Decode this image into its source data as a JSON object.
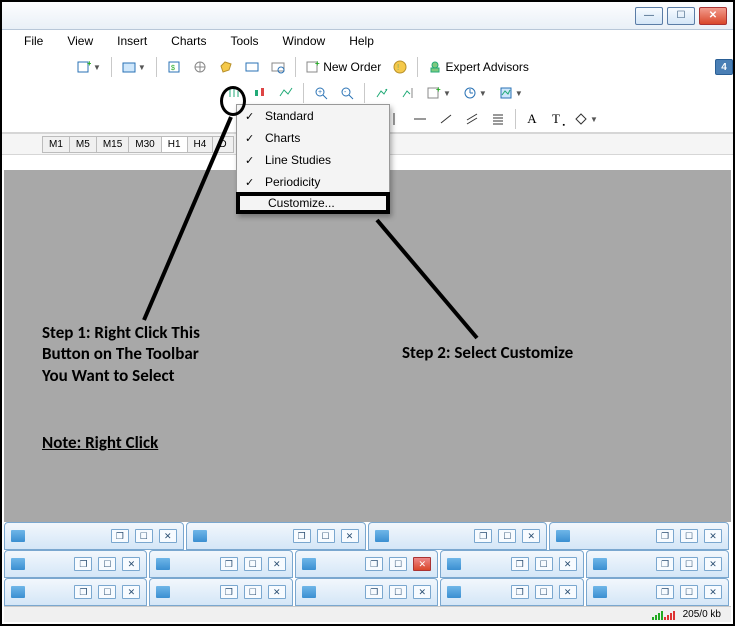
{
  "window": {
    "unicode": {
      "min": "—",
      "max": "☐",
      "close": "✕"
    }
  },
  "menu": {
    "items": [
      "File",
      "View",
      "Insert",
      "Charts",
      "Tools",
      "Window",
      "Help"
    ]
  },
  "toolbar": {
    "new_order": "New Order",
    "expert_advisors": "Expert Advisors",
    "row3_text": "A",
    "row3_text2": "T",
    "tail_badge": "4"
  },
  "timeframes": {
    "items": [
      "M1",
      "M5",
      "M15",
      "M30",
      "H1",
      "H4",
      "D"
    ],
    "active": "H1"
  },
  "context_menu": {
    "items": [
      {
        "label": "Standard",
        "checked": true
      },
      {
        "label": "Charts",
        "checked": true
      },
      {
        "label": "Line Studies",
        "checked": true
      },
      {
        "label": "Periodicity",
        "checked": true
      }
    ],
    "customize": "Customize..."
  },
  "annotations": {
    "step1": "Step 1: Right Click This\nButton on The Toolbar\nYou Want to Select",
    "step2": "Step 2: Select Customize",
    "note": "Note: Right Click"
  },
  "statusbar": {
    "kb": "205/0 kb"
  },
  "colors": {
    "canvas": "#a8a8a8",
    "highlight_border": "#000000"
  }
}
